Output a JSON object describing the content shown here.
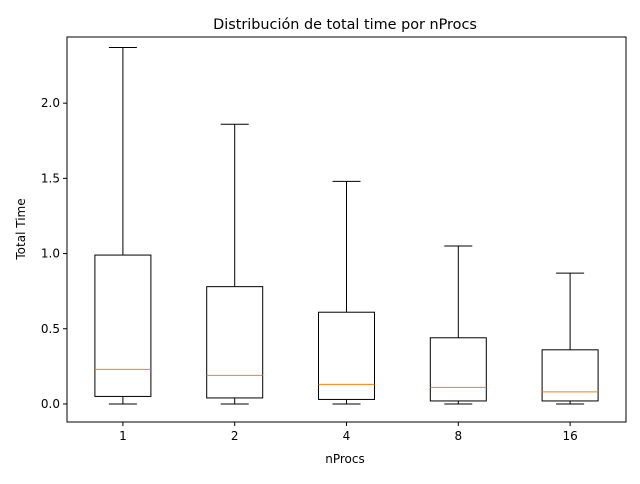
{
  "chart_data": {
    "type": "box",
    "title": "Distribución de total time por nProcs",
    "xlabel": "nProcs",
    "ylabel": "Total Time",
    "categories": [
      "1",
      "2",
      "4",
      "8",
      "16"
    ],
    "ylim": [
      -0.12,
      2.44
    ],
    "yticks": [
      0.0,
      0.5,
      1.0,
      1.5,
      2.0
    ],
    "ytick_labels": [
      "0.0",
      "0.5",
      "1.0",
      "1.5",
      "2.0"
    ],
    "grid": false,
    "boxes": [
      {
        "category": "1",
        "whisker_low": 0.0,
        "q1": 0.05,
        "median": 0.23,
        "q3": 0.99,
        "whisker_high": 2.37
      },
      {
        "category": "2",
        "whisker_low": 0.0,
        "q1": 0.04,
        "median": 0.19,
        "q3": 0.78,
        "whisker_high": 1.86
      },
      {
        "category": "4",
        "whisker_low": 0.0,
        "q1": 0.03,
        "median": 0.13,
        "q3": 0.61,
        "whisker_high": 1.48
      },
      {
        "category": "8",
        "whisker_low": 0.0,
        "q1": 0.02,
        "median": 0.11,
        "q3": 0.44,
        "whisker_high": 1.05
      },
      {
        "category": "16",
        "whisker_low": 0.0,
        "q1": 0.02,
        "median": 0.08,
        "q3": 0.36,
        "whisker_high": 0.87
      }
    ],
    "colors": {
      "box": "#000000",
      "median": "#ff7f0e",
      "axes": "#000000",
      "background": "#ffffff"
    }
  }
}
